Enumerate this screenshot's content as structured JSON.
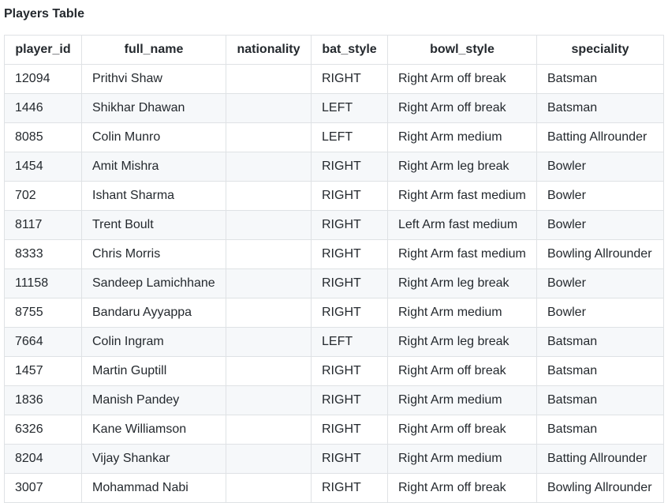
{
  "title": "Players Table",
  "columns": [
    "player_id",
    "full_name",
    "nationality",
    "bat_style",
    "bowl_style",
    "speciality"
  ],
  "rows": [
    [
      "12094",
      "Prithvi Shaw",
      "",
      "RIGHT",
      "Right Arm off break",
      "Batsman"
    ],
    [
      "1446",
      "Shikhar Dhawan",
      "",
      "LEFT",
      "Right Arm off break",
      "Batsman"
    ],
    [
      "8085",
      "Colin Munro",
      "",
      "LEFT",
      "Right Arm medium",
      "Batting Allrounder"
    ],
    [
      "1454",
      "Amit Mishra",
      "",
      "RIGHT",
      "Right Arm leg break",
      "Bowler"
    ],
    [
      "702",
      "Ishant Sharma",
      "",
      "RIGHT",
      "Right Arm fast medium",
      "Bowler"
    ],
    [
      "8117",
      "Trent Boult",
      "",
      "RIGHT",
      "Left Arm fast medium",
      "Bowler"
    ],
    [
      "8333",
      "Chris Morris",
      "",
      "RIGHT",
      "Right Arm fast medium",
      "Bowling Allrounder"
    ],
    [
      "11158",
      "Sandeep Lamichhane",
      "",
      "RIGHT",
      "Right Arm leg break",
      "Bowler"
    ],
    [
      "8755",
      "Bandaru Ayyappa",
      "",
      "RIGHT",
      "Right Arm medium",
      "Bowler"
    ],
    [
      "7664",
      "Colin Ingram",
      "",
      "LEFT",
      "Right Arm leg break",
      "Batsman"
    ],
    [
      "1457",
      "Martin Guptill",
      "",
      "RIGHT",
      "Right Arm off break",
      "Batsman"
    ],
    [
      "1836",
      "Manish Pandey",
      "",
      "RIGHT",
      "Right Arm medium",
      "Batsman"
    ],
    [
      "6326",
      "Kane Williamson",
      "",
      "RIGHT",
      "Right Arm off break",
      "Batsman"
    ],
    [
      "8204",
      "Vijay Shankar",
      "",
      "RIGHT",
      "Right Arm medium",
      "Batting Allrounder"
    ],
    [
      "3007",
      "Mohammad Nabi",
      "",
      "RIGHT",
      "Right Arm off break",
      "Bowling Allrounder"
    ]
  ]
}
